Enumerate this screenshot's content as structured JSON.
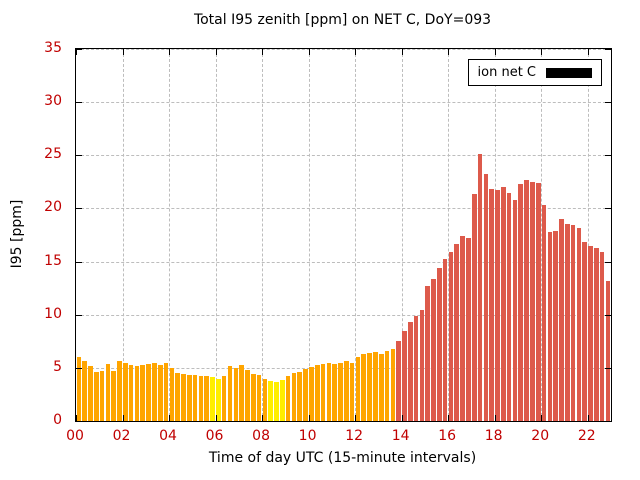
{
  "chart_data": {
    "type": "bar",
    "title": "Total I95 zenith [ppm] on NET C, DoY=093",
    "xlabel": "Time of day UTC (15-minute intervals)",
    "ylabel": "I95 [ppm]",
    "legend": {
      "label": "ion net C",
      "swatch_color": "#000000",
      "position": "top-right",
      "boxed": true
    },
    "grid": true,
    "xlim": [
      0,
      23
    ],
    "ylim": [
      0,
      35
    ],
    "xticks": [
      0,
      2,
      4,
      6,
      8,
      10,
      12,
      14,
      16,
      18,
      20,
      22
    ],
    "xtick_labels": [
      "00",
      "02",
      "04",
      "06",
      "08",
      "10",
      "12",
      "14",
      "16",
      "18",
      "20",
      "22"
    ],
    "yticks": [
      0,
      5,
      10,
      15,
      20,
      25,
      30,
      35
    ],
    "x_start_hour": 0,
    "x_step_hours": 0.25,
    "values": [
      6.0,
      5.6,
      5.2,
      4.6,
      4.7,
      5.4,
      4.7,
      5.6,
      5.5,
      5.3,
      5.2,
      5.3,
      5.4,
      5.5,
      5.3,
      5.5,
      5.0,
      4.5,
      4.4,
      4.3,
      4.3,
      4.2,
      4.2,
      4.1,
      4.0,
      4.2,
      5.2,
      5.0,
      5.3,
      4.8,
      4.4,
      4.3,
      4.0,
      3.8,
      3.7,
      3.9,
      4.2,
      4.5,
      4.6,
      4.9,
      5.1,
      5.3,
      5.4,
      5.5,
      5.4,
      5.5,
      5.6,
      5.5,
      6.0,
      6.3,
      6.4,
      6.5,
      6.3,
      6.6,
      6.8,
      7.5,
      8.5,
      9.3,
      9.9,
      10.4,
      12.7,
      13.4,
      14.4,
      15.2,
      15.9,
      16.7,
      17.4,
      17.2,
      21.4,
      25.1,
      23.2,
      21.8,
      21.7,
      22.0,
      21.5,
      20.8,
      22.3,
      22.7,
      22.5,
      22.4,
      20.3,
      17.8,
      17.9,
      19.0,
      18.5,
      18.4,
      18.2,
      16.8,
      16.5,
      16.3,
      15.9,
      13.2
    ],
    "bar_color_keys": [
      "o",
      "o",
      "o",
      "o",
      "o",
      "o",
      "o",
      "o",
      "o",
      "o",
      "o",
      "o",
      "o",
      "o",
      "o",
      "o",
      "o",
      "o",
      "o",
      "o",
      "o",
      "o",
      "o",
      "y",
      "y",
      "o",
      "o",
      "o",
      "o",
      "o",
      "o",
      "o",
      "o",
      "y",
      "y",
      "y",
      "o",
      "o",
      "o",
      "o",
      "o",
      "o",
      "o",
      "o",
      "o",
      "o",
      "o",
      "o",
      "o",
      "o",
      "o",
      "o",
      "o",
      "o",
      "o",
      "r",
      "r",
      "r",
      "r",
      "r",
      "r",
      "r",
      "r",
      "r",
      "r",
      "r",
      "r",
      "r",
      "r",
      "r",
      "r",
      "r",
      "r",
      "r",
      "r",
      "r",
      "r",
      "r",
      "r",
      "r",
      "r",
      "r",
      "r",
      "r",
      "r",
      "r",
      "r",
      "r",
      "r",
      "r",
      "r",
      "r"
    ],
    "palette": {
      "o": "#FFA500",
      "y": "#FFEE00",
      "r": "#DD5A4B"
    },
    "colors": {
      "tick_text": "#C00000",
      "grid": "#BDBDBD",
      "border": "#000000",
      "background": "#FFFFFF"
    }
  }
}
